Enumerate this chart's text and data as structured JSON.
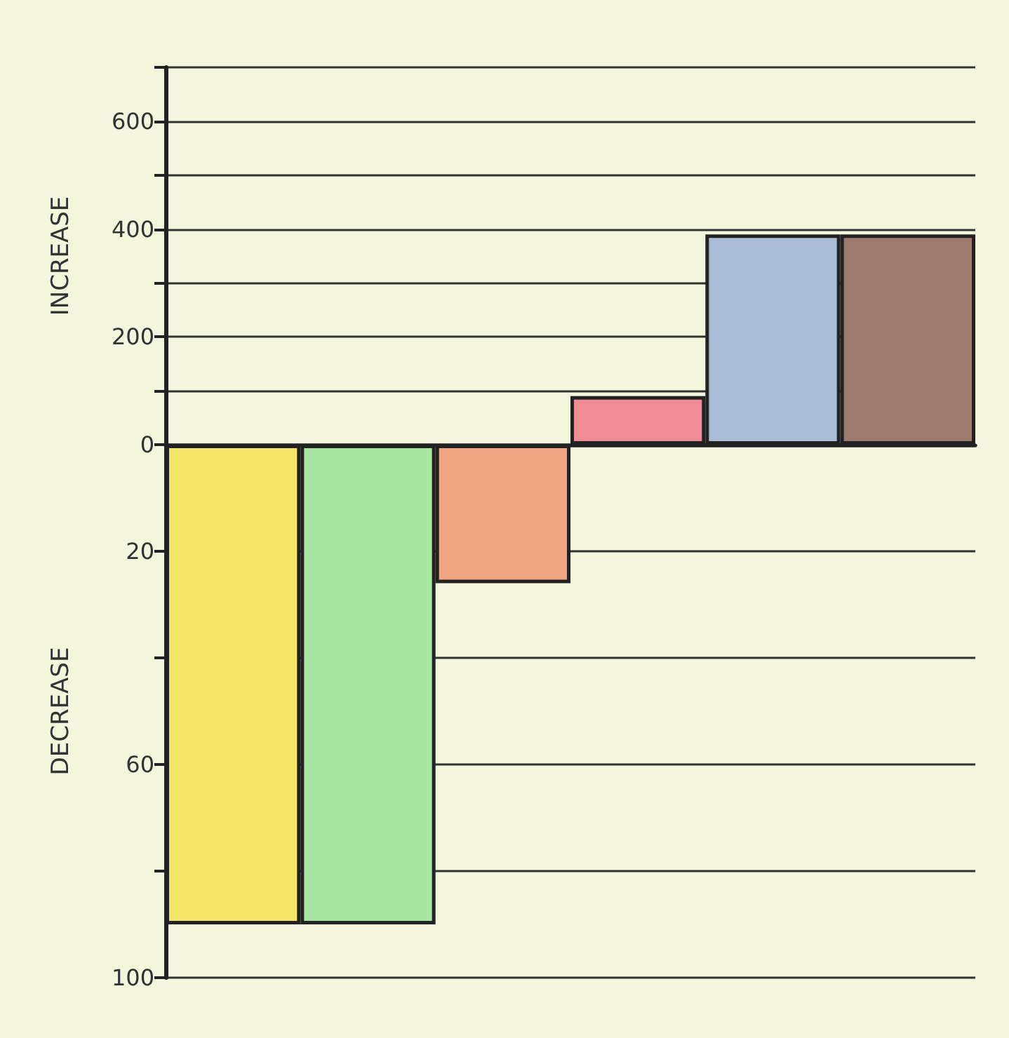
{
  "chart_data": [
    {
      "type": "bar",
      "ylabel": "INCREASE",
      "categories": [
        null,
        null,
        null,
        null,
        null,
        null
      ],
      "values": [
        null,
        null,
        null,
        90,
        390,
        390
      ],
      "colors": [
        "#f5e66a",
        "#a6e6a0",
        "#f2a582",
        "#f08c96",
        "#a9bdd6",
        "#9c7a6c"
      ],
      "ylim": [
        0,
        700
      ],
      "yticks": [
        0,
        {
          "value": 100,
          "label": null
        },
        200,
        {
          "value": 300,
          "label": null
        },
        400,
        {
          "value": 500,
          "label": null
        },
        600,
        {
          "value": 700,
          "label": null
        }
      ],
      "grid": "y"
    },
    {
      "type": "bar",
      "ylabel": "DECREASE",
      "categories": [
        null,
        null,
        null,
        null,
        null,
        null
      ],
      "values": [
        90,
        90,
        26,
        null,
        null,
        null
      ],
      "colors": [
        "#f5e66a",
        "#a6e6a0",
        "#f2a582",
        "#f08c96",
        "#a9bdd6",
        "#9c7a6c"
      ],
      "ylim": [
        100,
        0
      ],
      "yticks": [
        20,
        {
          "value": 40,
          "label": null
        },
        60,
        {
          "value": 80,
          "label": null
        },
        100
      ],
      "grid": "y"
    }
  ]
}
